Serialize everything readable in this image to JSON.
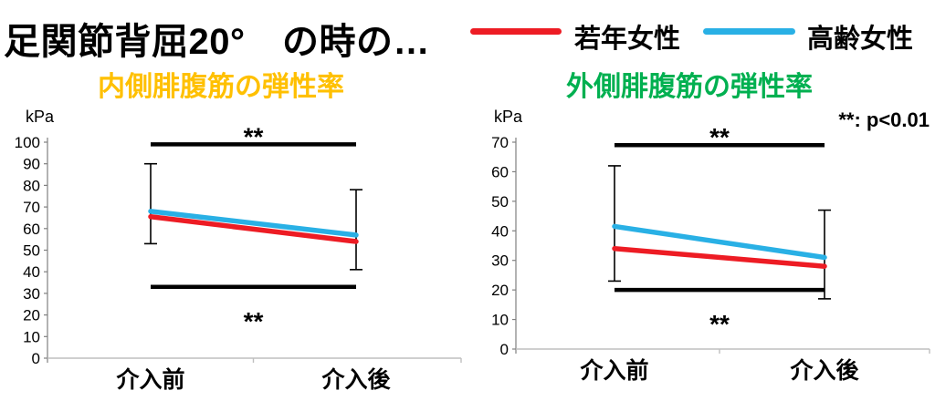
{
  "header": {
    "title": "足関節背屈20°　の時の…"
  },
  "legend": {
    "items": [
      {
        "label": "若年女性",
        "color": "#ED1C24"
      },
      {
        "label": "高齢女性",
        "color": "#29B0E5"
      }
    ]
  },
  "chart_data": [
    {
      "type": "line",
      "title": "内側腓腹筋の弾性率",
      "title_color": "#FFC000",
      "ylabel": "kPa",
      "ylim": [
        0,
        100
      ],
      "ytick_step": 10,
      "grid": false,
      "categories": [
        "介入前",
        "介入後"
      ],
      "series": [
        {
          "name": "若年女性",
          "color": "#ED1C24",
          "values": [
            65.5,
            54
          ]
        },
        {
          "name": "高齢女性",
          "color": "#29B0E5",
          "values": [
            68,
            57
          ]
        }
      ],
      "error_bars": [
        {
          "x_index": 0,
          "low": 53,
          "high": 90
        },
        {
          "x_index": 1,
          "low": 41,
          "high": 78
        }
      ],
      "significance_bars": [
        {
          "y": 99,
          "label": "**",
          "label_position": "above"
        },
        {
          "y": 33,
          "label": "**",
          "label_position": "below"
        }
      ]
    },
    {
      "type": "line",
      "title": "外側腓腹筋の弾性率",
      "title_color": "#00B050",
      "ylabel": "kPa",
      "ylim": [
        0,
        70
      ],
      "ytick_step": 10,
      "grid": false,
      "categories": [
        "介入前",
        "介入後"
      ],
      "series": [
        {
          "name": "若年女性",
          "color": "#ED1C24",
          "values": [
            34,
            28
          ]
        },
        {
          "name": "高齢女性",
          "color": "#29B0E5",
          "values": [
            41.5,
            31
          ]
        }
      ],
      "error_bars": [
        {
          "x_index": 0,
          "low": 23,
          "high": 62
        },
        {
          "x_index": 1,
          "low": 17,
          "high": 47
        }
      ],
      "significance_bars": [
        {
          "y": 69,
          "label": "**",
          "label_position": "above"
        },
        {
          "y": 20,
          "label": "**",
          "label_position": "below"
        }
      ],
      "annotation": "**: p<0.01"
    }
  ]
}
